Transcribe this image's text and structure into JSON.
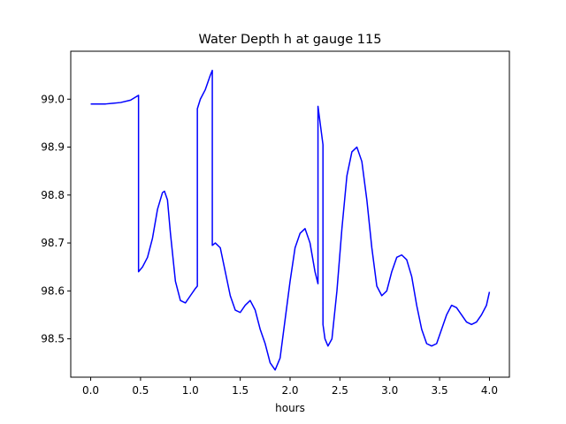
{
  "chart_data": {
    "type": "line",
    "title": "Water Depth h at gauge 115",
    "xlabel": "hours",
    "ylabel": "",
    "xlim": [
      -0.2,
      4.2
    ],
    "ylim": [
      98.42,
      99.1
    ],
    "xticks": [
      0.0,
      0.5,
      1.0,
      1.5,
      2.0,
      2.5,
      3.0,
      3.5,
      4.0
    ],
    "xtick_labels": [
      "0.0",
      "0.5",
      "1.0",
      "1.5",
      "2.0",
      "2.5",
      "3.0",
      "3.5",
      "4.0"
    ],
    "yticks": [
      98.5,
      98.6,
      98.7,
      98.8,
      98.9,
      99.0
    ],
    "ytick_labels": [
      "98.5",
      "98.6",
      "98.7",
      "98.8",
      "98.9",
      "99.0"
    ],
    "grid": false,
    "series": [
      {
        "color": "#0000ff",
        "x": [
          0.0,
          0.15,
          0.3,
          0.4,
          0.48,
          0.48,
          0.52,
          0.57,
          0.62,
          0.67,
          0.72,
          0.74,
          0.77,
          0.8,
          0.85,
          0.9,
          0.95,
          1.0,
          1.05,
          1.07,
          1.07,
          1.1,
          1.15,
          1.2,
          1.22,
          1.22,
          1.25,
          1.3,
          1.35,
          1.4,
          1.45,
          1.5,
          1.55,
          1.6,
          1.65,
          1.7,
          1.75,
          1.8,
          1.85,
          1.9,
          1.95,
          2.0,
          2.05,
          2.1,
          2.15,
          2.2,
          2.25,
          2.28,
          2.28,
          2.33,
          2.33,
          2.35,
          2.38,
          2.42,
          2.47,
          2.52,
          2.57,
          2.62,
          2.67,
          2.72,
          2.77,
          2.82,
          2.87,
          2.92,
          2.97,
          3.02,
          3.07,
          3.12,
          3.17,
          3.22,
          3.27,
          3.32,
          3.37,
          3.42,
          3.47,
          3.52,
          3.57,
          3.62,
          3.67,
          3.72,
          3.77,
          3.82,
          3.87,
          3.92,
          3.97,
          4.0
        ],
        "y": [
          98.99,
          98.99,
          98.993,
          98.998,
          99.008,
          98.64,
          98.65,
          98.67,
          98.71,
          98.77,
          98.805,
          98.808,
          98.79,
          98.72,
          98.62,
          98.58,
          98.575,
          98.59,
          98.605,
          98.61,
          98.98,
          99.0,
          99.02,
          99.05,
          99.06,
          98.695,
          98.7,
          98.69,
          98.64,
          98.59,
          98.56,
          98.555,
          98.57,
          98.58,
          98.56,
          98.52,
          98.49,
          98.45,
          98.435,
          98.46,
          98.54,
          98.62,
          98.69,
          98.72,
          98.73,
          98.7,
          98.64,
          98.615,
          98.985,
          98.905,
          98.53,
          98.5,
          98.485,
          98.5,
          98.6,
          98.73,
          98.84,
          98.89,
          98.9,
          98.87,
          98.79,
          98.69,
          98.61,
          98.59,
          98.6,
          98.64,
          98.67,
          98.675,
          98.665,
          98.63,
          98.57,
          98.52,
          98.49,
          98.485,
          98.49,
          98.52,
          98.55,
          98.57,
          98.565,
          98.55,
          98.535,
          98.53,
          98.535,
          98.55,
          98.57,
          98.598
        ]
      }
    ]
  }
}
